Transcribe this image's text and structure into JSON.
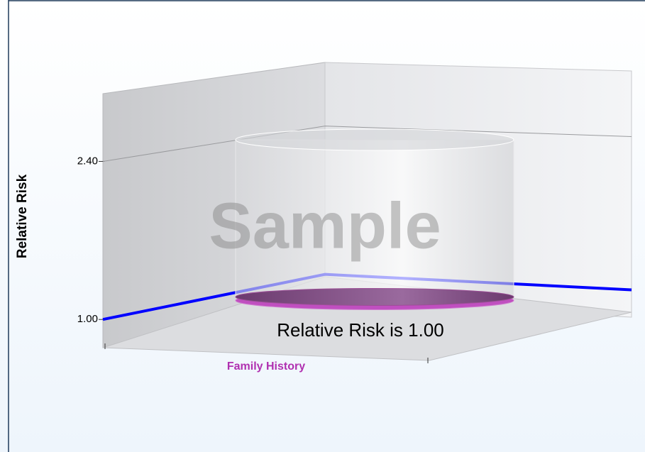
{
  "chart_data": {
    "type": "bar",
    "watermark": "Sample",
    "y_label": "Relative Risk",
    "categories": [
      "Family History"
    ],
    "values": [
      1
    ],
    "color": "#9b4f96",
    "annotation": "Relative Risk is 1.00",
    "reference_line": {
      "value": 1,
      "color": "#0000ff"
    },
    "ylim": [
      0.75,
      3
    ],
    "yticks": [
      {
        "value": 1,
        "label": "1.00"
      },
      {
        "value": 2.4,
        "label": "2.40"
      }
    ],
    "grid": true
  }
}
